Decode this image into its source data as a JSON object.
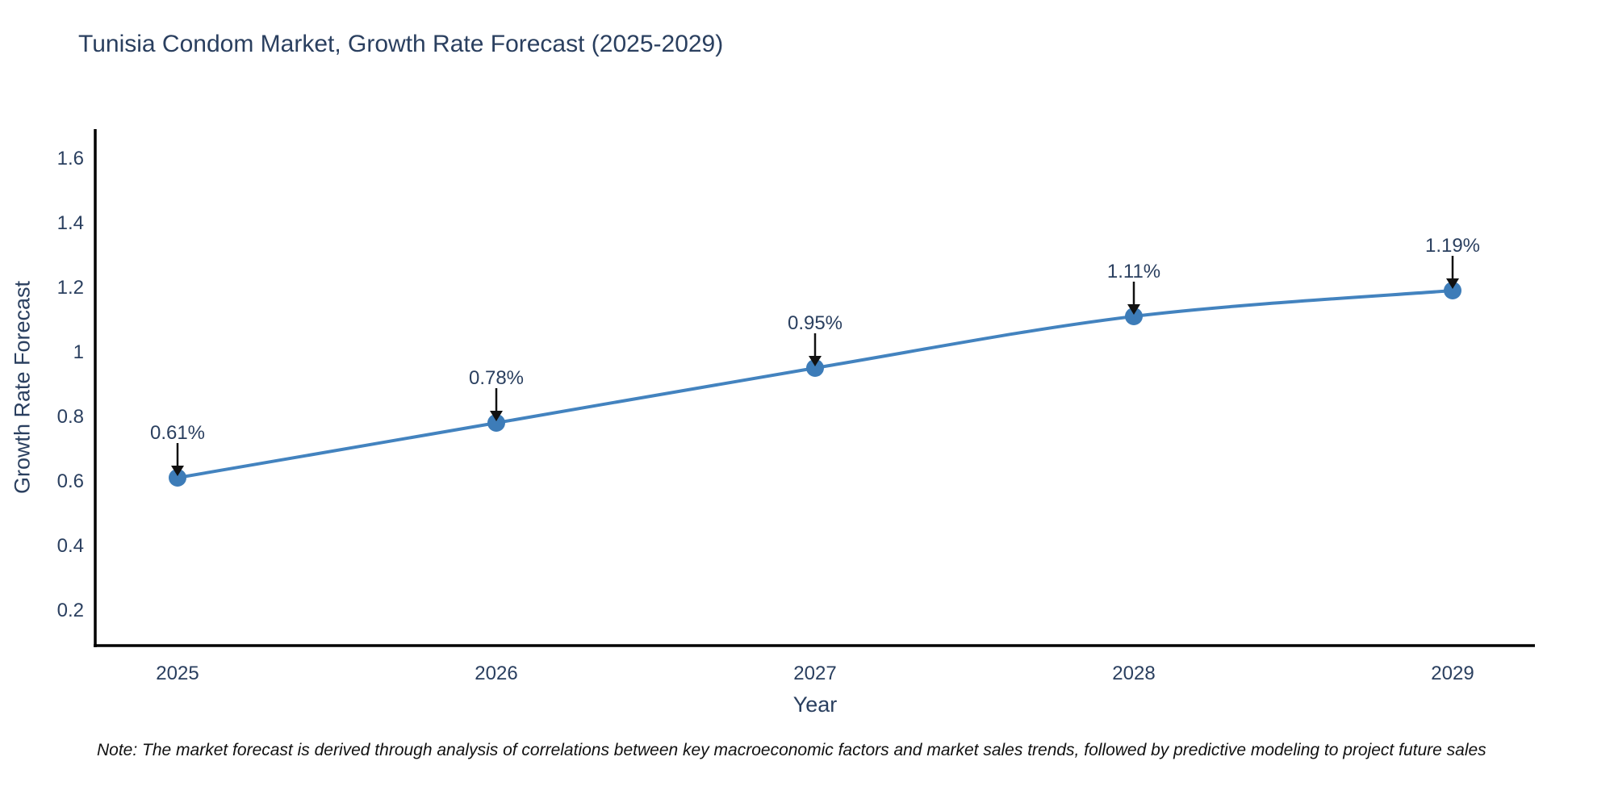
{
  "page": {
    "title": "Tunisia Condom Market, Growth Rate Forecast (2025-2029)",
    "footnote": "Note: The market forecast is derived through analysis of correlations between key macroeconomic factors and market sales trends, followed by predictive modeling to project future sales"
  },
  "chart_data": {
    "type": "line",
    "title": "Tunisia Condom Market, Growth Rate Forecast (2025-2029)",
    "xlabel": "Year",
    "ylabel": "Growth Rate Forecast",
    "categories": [
      "2025",
      "2026",
      "2027",
      "2028",
      "2029"
    ],
    "series": [
      {
        "name": "Growth Rate Forecast",
        "values": [
          0.61,
          0.78,
          0.95,
          1.11,
          1.19
        ],
        "labels": [
          "0.61%",
          "0.78%",
          "0.95%",
          "1.11%",
          "1.19%"
        ]
      }
    ],
    "ytick_labels": [
      "0.2",
      "0.4",
      "0.6",
      "0.8",
      "1",
      "1.2",
      "1.4",
      "1.6"
    ],
    "ytick_values": [
      0.2,
      0.4,
      0.6,
      0.8,
      1.0,
      1.2,
      1.4,
      1.6
    ],
    "ylim": [
      0.09,
      1.69
    ],
    "grid": false,
    "legend_position": "none",
    "annotation_style": "value-label-above-point-with-down-arrow",
    "colors": {
      "line": "#4383bf",
      "marker": "#3d7cb8",
      "axis": "#000000",
      "text": "#2a3f5f",
      "arrow": "#111111",
      "background": "#ffffff"
    }
  }
}
